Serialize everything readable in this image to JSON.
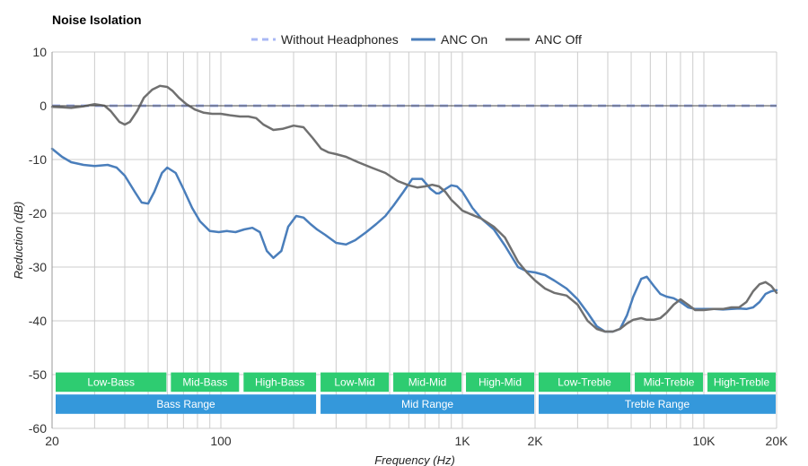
{
  "chart_data": {
    "type": "line",
    "title": "Noise Isolation",
    "xlabel": "Frequency (Hz)",
    "ylabel": "Reduction (dB)",
    "x_scale": "log",
    "xlim": [
      20,
      20000
    ],
    "ylim": [
      -60,
      10
    ],
    "grid": true,
    "legend_position": "top-center",
    "x_ticks": [
      {
        "value": 20,
        "label": "20"
      },
      {
        "value": 100,
        "label": "100"
      },
      {
        "value": 1000,
        "label": "1K"
      },
      {
        "value": 2000,
        "label": "2K"
      },
      {
        "value": 10000,
        "label": "10K"
      },
      {
        "value": 20000,
        "label": "20K"
      }
    ],
    "y_ticks": [
      10,
      0,
      -10,
      -20,
      -30,
      -40,
      -50,
      -60
    ],
    "series": [
      {
        "name": "Without Headphones",
        "color": "#a9b8f5",
        "dashed": true,
        "x": [
          20,
          20000
        ],
        "y": [
          0,
          0
        ]
      },
      {
        "name": "ANC On",
        "color": "#4a7ebb",
        "dashed": false,
        "x": [
          20,
          22,
          24,
          27,
          30,
          34,
          37,
          40,
          44,
          47,
          50,
          53,
          57,
          60,
          65,
          70,
          76,
          82,
          90,
          98,
          106,
          115,
          125,
          135,
          145,
          155,
          165,
          178,
          190,
          205,
          220,
          235,
          250,
          270,
          300,
          330,
          360,
          400,
          440,
          480,
          520,
          570,
          620,
          680,
          740,
          780,
          800,
          850,
          900,
          950,
          1000,
          1050,
          1100,
          1200,
          1350,
          1500,
          1700,
          1850,
          2000,
          2200,
          2400,
          2700,
          3000,
          3300,
          3600,
          3900,
          4200,
          4500,
          4800,
          5100,
          5500,
          5800,
          6200,
          6600,
          7000,
          7500,
          8000,
          8600,
          9200,
          10000,
          11000,
          12000,
          13000,
          14000,
          15000,
          16000,
          17000,
          18000,
          19000,
          20000
        ],
        "y": [
          -8.0,
          -9.5,
          -10.5,
          -11.0,
          -11.2,
          -11.0,
          -11.5,
          -13.0,
          -16.0,
          -18.0,
          -18.2,
          -16.0,
          -12.5,
          -11.5,
          -12.5,
          -15.5,
          -19.0,
          -21.5,
          -23.3,
          -23.5,
          -23.3,
          -23.5,
          -23.0,
          -22.7,
          -23.5,
          -27.0,
          -28.3,
          -27.0,
          -22.5,
          -20.5,
          -20.8,
          -22.0,
          -23.0,
          -24.0,
          -25.5,
          -25.8,
          -25.0,
          -23.5,
          -22.0,
          -20.5,
          -18.5,
          -16.0,
          -13.6,
          -13.6,
          -15.5,
          -16.3,
          -16.3,
          -15.5,
          -14.8,
          -15.0,
          -16.0,
          -17.5,
          -19.0,
          -21.0,
          -23.0,
          -26.0,
          -30.0,
          -30.8,
          -31.0,
          -31.5,
          -32.5,
          -34.0,
          -36.0,
          -38.5,
          -41.0,
          -42.0,
          -42.0,
          -41.5,
          -39.0,
          -35.5,
          -32.2,
          -31.8,
          -33.5,
          -35.0,
          -35.5,
          -35.8,
          -36.5,
          -37.5,
          -37.8,
          -37.8,
          -37.8,
          -37.9,
          -37.8,
          -37.7,
          -37.8,
          -37.5,
          -36.5,
          -35.0,
          -34.5,
          -34.3
        ]
      },
      {
        "name": "ANC Off",
        "color": "#707070",
        "dashed": false,
        "x": [
          20,
          22,
          24,
          27,
          30,
          33,
          35,
          38,
          40,
          42,
          45,
          48,
          52,
          56,
          60,
          63,
          67,
          72,
          78,
          85,
          92,
          100,
          110,
          120,
          130,
          140,
          150,
          165,
          180,
          200,
          220,
          240,
          260,
          280,
          300,
          330,
          370,
          420,
          480,
          540,
          600,
          650,
          700,
          750,
          800,
          850,
          900,
          950,
          1000,
          1100,
          1200,
          1350,
          1500,
          1700,
          1850,
          2000,
          2200,
          2400,
          2700,
          3000,
          3300,
          3600,
          3900,
          4200,
          4500,
          4800,
          5100,
          5500,
          5800,
          6200,
          6600,
          7000,
          7500,
          8000,
          8600,
          9200,
          10000,
          11000,
          12000,
          13000,
          14000,
          15000,
          16000,
          17000,
          18000,
          19000,
          20000
        ],
        "y": [
          -0.2,
          -0.3,
          -0.4,
          -0.1,
          0.3,
          0.0,
          -1.0,
          -3.0,
          -3.5,
          -3.0,
          -1.0,
          1.5,
          3.0,
          3.7,
          3.5,
          2.8,
          1.5,
          0.3,
          -0.7,
          -1.3,
          -1.5,
          -1.5,
          -1.8,
          -2.0,
          -2.0,
          -2.3,
          -3.5,
          -4.5,
          -4.3,
          -3.7,
          -4.0,
          -6.0,
          -8.0,
          -8.7,
          -9.0,
          -9.5,
          -10.5,
          -11.5,
          -12.5,
          -14.0,
          -14.8,
          -15.2,
          -15.0,
          -14.7,
          -15.0,
          -16.0,
          -17.5,
          -18.5,
          -19.5,
          -20.3,
          -21.0,
          -22.5,
          -24.5,
          -29.0,
          -31.0,
          -32.5,
          -34.0,
          -34.8,
          -35.3,
          -37.0,
          -40.0,
          -41.5,
          -42.0,
          -42.0,
          -41.5,
          -40.5,
          -39.8,
          -39.5,
          -39.8,
          -39.8,
          -39.5,
          -38.5,
          -37.0,
          -36.0,
          -37.0,
          -38.0,
          -38.0,
          -37.8,
          -37.8,
          -37.5,
          -37.5,
          -36.5,
          -34.5,
          -33.2,
          -32.8,
          -33.5,
          -34.8
        ]
      }
    ],
    "bands": [
      {
        "label": "Low-Bass",
        "row": 1,
        "from": 20,
        "to": 60,
        "color": "#2ecc71"
      },
      {
        "label": "Mid-Bass",
        "row": 1,
        "from": 60,
        "to": 120,
        "color": "#2ecc71"
      },
      {
        "label": "High-Bass",
        "row": 1,
        "from": 120,
        "to": 250,
        "color": "#2ecc71"
      },
      {
        "label": "Low-Mid",
        "row": 1,
        "from": 250,
        "to": 500,
        "color": "#2ecc71"
      },
      {
        "label": "Mid-Mid",
        "row": 1,
        "from": 500,
        "to": 1000,
        "color": "#2ecc71"
      },
      {
        "label": "High-Mid",
        "row": 1,
        "from": 1000,
        "to": 2000,
        "color": "#2ecc71"
      },
      {
        "label": "Low-Treble",
        "row": 1,
        "from": 2000,
        "to": 5000,
        "color": "#2ecc71"
      },
      {
        "label": "Mid-Treble",
        "row": 1,
        "from": 5000,
        "to": 10000,
        "color": "#2ecc71"
      },
      {
        "label": "High-Treble",
        "row": 1,
        "from": 10000,
        "to": 20000,
        "color": "#2ecc71"
      },
      {
        "label": "Bass Range",
        "row": 2,
        "from": 20,
        "to": 250,
        "color": "#3498db"
      },
      {
        "label": "Mid Range",
        "row": 2,
        "from": 250,
        "to": 2000,
        "color": "#3498db"
      },
      {
        "label": "Treble Range",
        "row": 2,
        "from": 2000,
        "to": 20000,
        "color": "#3498db"
      }
    ]
  }
}
